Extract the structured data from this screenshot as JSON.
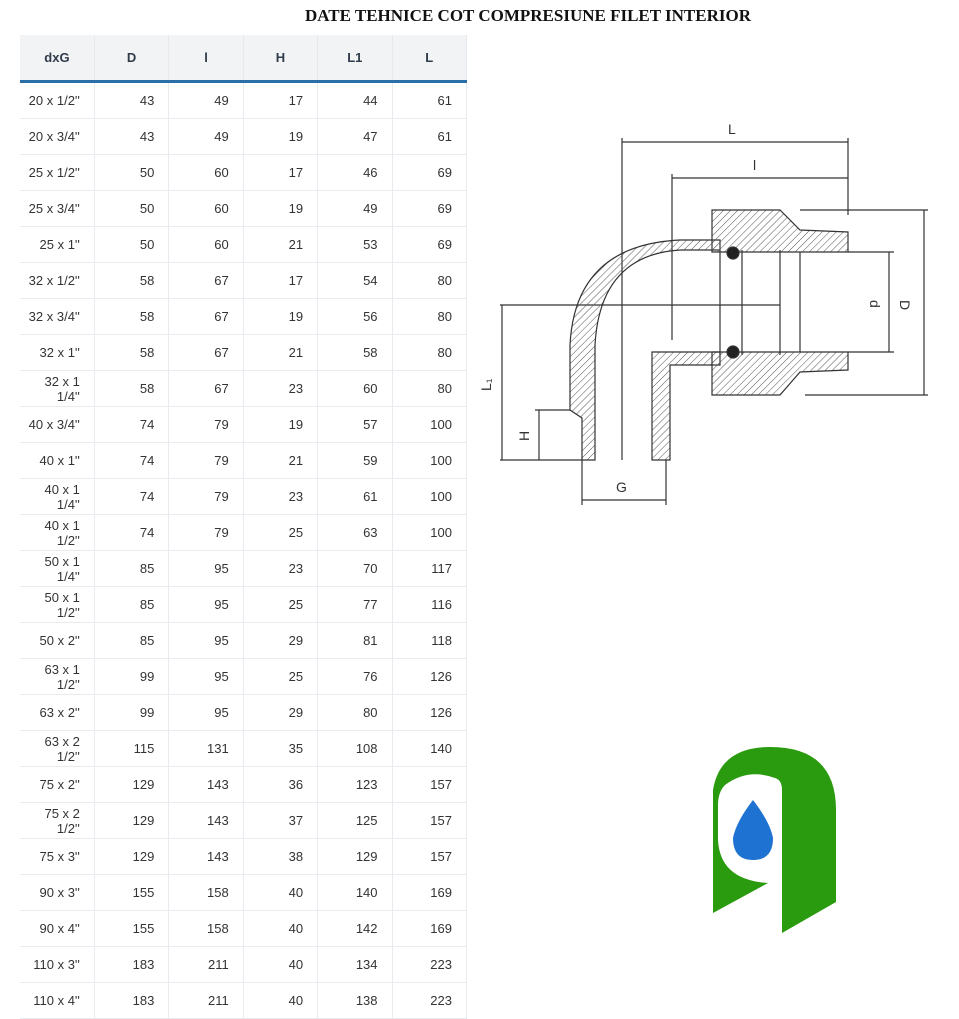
{
  "title": "DATE TEHNICE COT COMPRESIUNE FILET INTERIOR",
  "table": {
    "headers": [
      "dxG",
      "D",
      "l",
      "H",
      "L1",
      "L"
    ],
    "rows": [
      [
        "20 x 1/2''",
        "43",
        "49",
        "17",
        "44",
        "61"
      ],
      [
        "20 x 3/4''",
        "43",
        "49",
        "19",
        "47",
        "61"
      ],
      [
        "25 x 1/2''",
        "50",
        "60",
        "17",
        "46",
        "69"
      ],
      [
        "25 x 3/4''",
        "50",
        "60",
        "19",
        "49",
        "69"
      ],
      [
        "25 x 1''",
        "50",
        "60",
        "21",
        "53",
        "69"
      ],
      [
        "32 x 1/2''",
        "58",
        "67",
        "17",
        "54",
        "80"
      ],
      [
        "32 x 3/4''",
        "58",
        "67",
        "19",
        "56",
        "80"
      ],
      [
        "32 x 1''",
        "58",
        "67",
        "21",
        "58",
        "80"
      ],
      [
        "32 x 1 1/4''",
        "58",
        "67",
        "23",
        "60",
        "80"
      ],
      [
        "40 x 3/4''",
        "74",
        "79",
        "19",
        "57",
        "100"
      ],
      [
        "40 x 1''",
        "74",
        "79",
        "21",
        "59",
        "100"
      ],
      [
        "40 x 1 1/4''",
        "74",
        "79",
        "23",
        "61",
        "100"
      ],
      [
        "40 x 1 1/2''",
        "74",
        "79",
        "25",
        "63",
        "100"
      ],
      [
        "50 x 1 1/4''",
        "85",
        "95",
        "23",
        "70",
        "117"
      ],
      [
        "50 x 1 1/2''",
        "85",
        "95",
        "25",
        "77",
        "116"
      ],
      [
        "50 x 2''",
        "85",
        "95",
        "29",
        "81",
        "118"
      ],
      [
        "63 x 1 1/2''",
        "99",
        "95",
        "25",
        "76",
        "126"
      ],
      [
        "63 x 2''",
        "99",
        "95",
        "29",
        "80",
        "126"
      ],
      [
        "63 x 2 1/2''",
        "115",
        "131",
        "35",
        "108",
        "140"
      ],
      [
        "75 x 2''",
        "129",
        "143",
        "36",
        "123",
        "157"
      ],
      [
        "75 x 2 1/2''",
        "129",
        "143",
        "37",
        "125",
        "157"
      ],
      [
        "75 x 3''",
        "129",
        "143",
        "38",
        "129",
        "157"
      ],
      [
        "90 x 3''",
        "155",
        "158",
        "40",
        "140",
        "169"
      ],
      [
        "90 x 4''",
        "155",
        "158",
        "40",
        "142",
        "169"
      ],
      [
        "110 x 3''",
        "183",
        "211",
        "40",
        "134",
        "223"
      ],
      [
        "110 x 4''",
        "183",
        "211",
        "40",
        "138",
        "223"
      ]
    ]
  },
  "diagram": {
    "labels": {
      "L": "L",
      "l": "l",
      "d": "d",
      "D": "D",
      "L1": "L₁",
      "H": "H",
      "G": "G"
    }
  },
  "colors": {
    "header_border": "#2a6fa8",
    "logo_green": "#2a9a0e",
    "logo_drop": "#1e73d2"
  }
}
